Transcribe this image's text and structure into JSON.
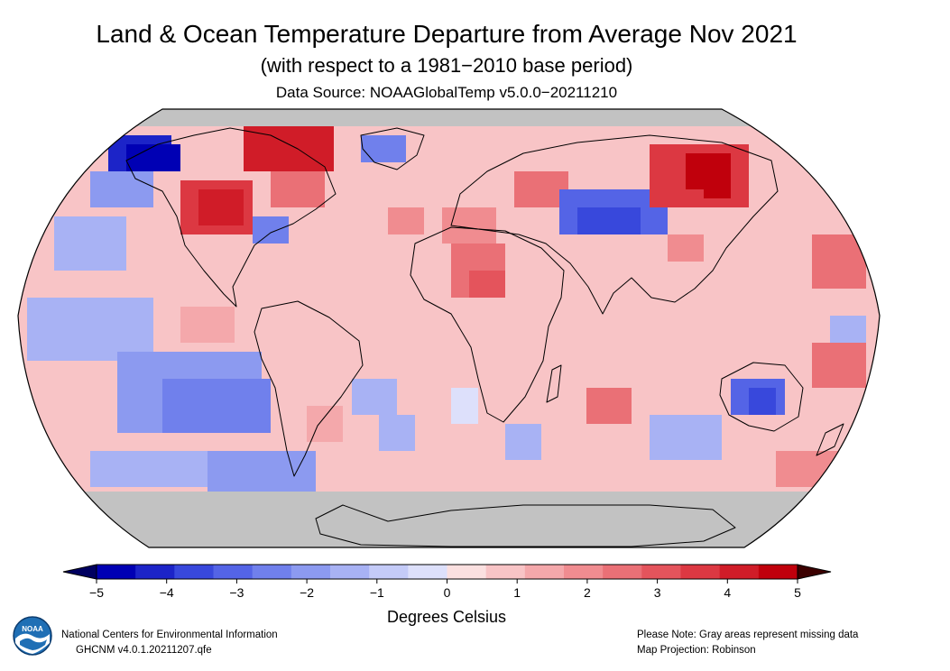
{
  "header": {
    "title": "Land & Ocean Temperature Departure from Average Nov 2021",
    "subtitle": "(with respect to a 1981−2010 base period)",
    "source": "Data Source: NOAAGlobalTemp v5.0.0−20211210"
  },
  "legend": {
    "units": "Degrees Celsius",
    "ticks": [
      "−5",
      "−4",
      "−3",
      "−2",
      "−1",
      "0",
      "1",
      "2",
      "3",
      "4",
      "5"
    ],
    "min": -5,
    "max": 5,
    "colors": [
      "#0000b4",
      "#1c24c8",
      "#3848dc",
      "#5464e6",
      "#7080ec",
      "#8c9af0",
      "#a8b2f4",
      "#c4cbf8",
      "#dde0fb",
      "#fbe0e0",
      "#f8c4c6",
      "#f4a8ab",
      "#f08c90",
      "#ea7076",
      "#e4545c",
      "#dc3842",
      "#d01c28",
      "#c0000c"
    ],
    "below_color": "#000060",
    "above_color": "#3c0000"
  },
  "map": {
    "projection_note": "Map Projection: Robinson",
    "missing_note": "Please Note: Gray areas represent missing data",
    "missing_color": "#c2c2c2",
    "ocean_neutral": "#f8c4c6"
  },
  "footer": {
    "org": "National Centers for Environmental Information",
    "dataset": "GHCNM v4.0.1.20211207.qfe",
    "logo_text": "NOAA"
  }
}
